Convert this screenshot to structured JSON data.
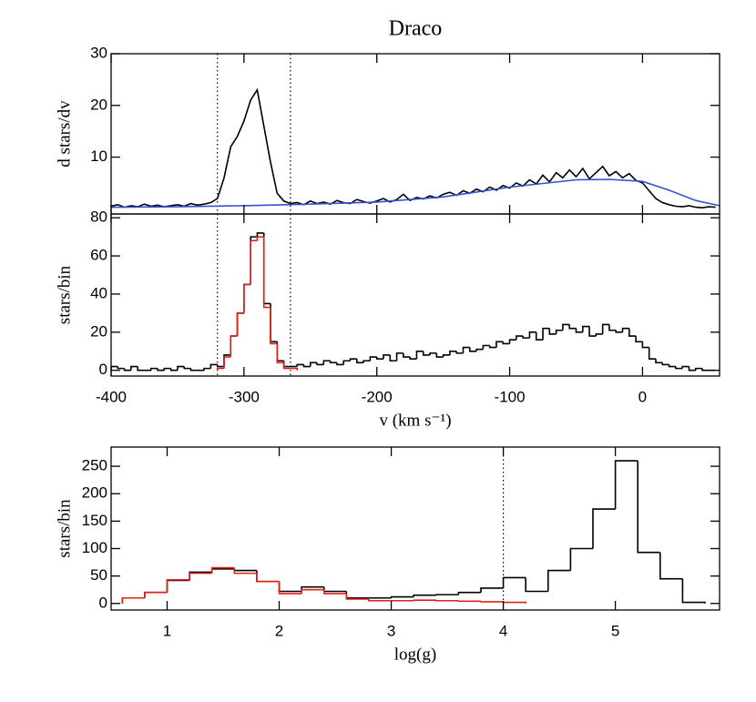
{
  "chart_data": [
    {
      "type": "line",
      "title": "Draco",
      "ylabel": "d stars/dv",
      "xlim": [
        -400,
        58
      ],
      "ylim": [
        -1,
        30
      ],
      "yticks": [
        10,
        20,
        30
      ],
      "vlines": [
        -320,
        -265
      ],
      "series": [
        {
          "color": "#000000",
          "x": [
            -400,
            -395,
            -390,
            -385,
            -380,
            -375,
            -370,
            -365,
            -360,
            -355,
            -350,
            -345,
            -340,
            -335,
            -330,
            -325,
            -320,
            -315,
            -310,
            -305,
            -300,
            -295,
            -290,
            -285,
            -280,
            -275,
            -270,
            -265,
            -260,
            -255,
            -250,
            -245,
            -240,
            -235,
            -230,
            -225,
            -220,
            -215,
            -210,
            -205,
            -200,
            -195,
            -190,
            -185,
            -180,
            -175,
            -170,
            -165,
            -160,
            -155,
            -150,
            -145,
            -140,
            -135,
            -130,
            -125,
            -120,
            -115,
            -110,
            -105,
            -100,
            -95,
            -90,
            -85,
            -80,
            -75,
            -70,
            -65,
            -60,
            -55,
            -50,
            -45,
            -40,
            -35,
            -30,
            -25,
            -20,
            -15,
            -10,
            -5,
            0,
            5,
            10,
            15,
            20,
            25,
            30,
            35,
            40,
            45,
            50,
            55
          ],
          "values": [
            0.5,
            0.8,
            0.3,
            0.6,
            0.4,
            0.9,
            0.5,
            0.7,
            0.4,
            0.6,
            0.8,
            0.5,
            1.0,
            0.7,
            0.9,
            1.2,
            2,
            6,
            12,
            14,
            17,
            21,
            23,
            16,
            9,
            3,
            1.5,
            1.0,
            1.2,
            0.8,
            1.5,
            1.0,
            1.3,
            0.9,
            1.6,
            1.2,
            1.0,
            1.8,
            1.4,
            1.1,
            1.5,
            2.0,
            1.3,
            1.8,
            2.8,
            1.6,
            2.2,
            1.9,
            2.5,
            2.1,
            2.8,
            3.2,
            2.6,
            3.5,
            3.0,
            3.8,
            3.3,
            4.2,
            3.6,
            4.5,
            4.0,
            5.0,
            4.4,
            5.6,
            4.8,
            6.5,
            5.2,
            7.0,
            6.0,
            7.5,
            6.2,
            7.8,
            5.8,
            7.0,
            8.2,
            6.4,
            7.2,
            6.0,
            6.8,
            5.5,
            5.0,
            3.5,
            2.0,
            1.2,
            0.8,
            0.5,
            0.4,
            0.6,
            0.3,
            0.2,
            0.4,
            0.3
          ]
        },
        {
          "color": "#3a4fd0",
          "x": [
            -400,
            -350,
            -300,
            -250,
            -200,
            -150,
            -100,
            -50,
            -25,
            0,
            20,
            40,
            58
          ],
          "values": [
            0.3,
            0.4,
            0.6,
            0.9,
            1.3,
            2.3,
            4.2,
            5.6,
            5.7,
            5.3,
            3.6,
            1.6,
            0.6
          ]
        }
      ]
    },
    {
      "type": "histogram",
      "ylabel": "stars/bin",
      "xlabel": "v (km s⁻¹)",
      "xlim": [
        -400,
        58
      ],
      "xticks": [
        -400,
        -300,
        -200,
        -100,
        0
      ],
      "ylim": [
        -3,
        82
      ],
      "yticks": [
        0,
        20,
        40,
        60,
        80
      ],
      "vlines": [
        -320,
        -265
      ],
      "series": [
        {
          "color": "#000000",
          "bins": [
            -400,
            -395,
            -390,
            -385,
            -380,
            -375,
            -370,
            -365,
            -360,
            -355,
            -350,
            -345,
            -340,
            -335,
            -330,
            -325,
            -320,
            -315,
            -310,
            -305,
            -300,
            -295,
            -290,
            -285,
            -280,
            -275,
            -270,
            -265,
            -260,
            -255,
            -250,
            -245,
            -240,
            -235,
            -230,
            -225,
            -220,
            -215,
            -210,
            -205,
            -200,
            -195,
            -190,
            -185,
            -180,
            -175,
            -170,
            -165,
            -160,
            -155,
            -150,
            -145,
            -140,
            -135,
            -130,
            -125,
            -120,
            -115,
            -110,
            -105,
            -100,
            -95,
            -90,
            -85,
            -80,
            -75,
            -70,
            -65,
            -60,
            -55,
            -50,
            -45,
            -40,
            -35,
            -30,
            -25,
            -20,
            -15,
            -10,
            -5,
            0,
            5,
            10,
            15,
            20,
            25,
            30,
            35,
            40,
            45,
            50,
            55
          ],
          "values": [
            2,
            1,
            0,
            2,
            0,
            0,
            1,
            0,
            1,
            0,
            2,
            1,
            0,
            0,
            1,
            3,
            2,
            8,
            18,
            30,
            45,
            70,
            72,
            35,
            15,
            5,
            2,
            2,
            3,
            2,
            4,
            3,
            5,
            4,
            3,
            5,
            6,
            4,
            5,
            7,
            6,
            8,
            5,
            9,
            7,
            6,
            10,
            8,
            9,
            7,
            8,
            10,
            9,
            12,
            10,
            11,
            13,
            12,
            15,
            14,
            16,
            18,
            17,
            20,
            16,
            22,
            19,
            21,
            24,
            22,
            20,
            23,
            18,
            19,
            24,
            21,
            20,
            22,
            18,
            15,
            12,
            6,
            4,
            3,
            2,
            1,
            2,
            0,
            1,
            0,
            0
          ]
        },
        {
          "color": "#e0201b",
          "bins": [
            -320,
            -315,
            -310,
            -305,
            -300,
            -295,
            -290,
            -285,
            -280,
            -275,
            -270,
            -265,
            -260
          ],
          "values": [
            1,
            7,
            18,
            30,
            45,
            68,
            70,
            33,
            14,
            4,
            1,
            1
          ]
        }
      ]
    },
    {
      "type": "histogram",
      "ylabel": "stars/bin",
      "xlabel": "log(g)",
      "xlim": [
        0.5,
        5.93
      ],
      "xticks": [
        1,
        2,
        3,
        4,
        5
      ],
      "ylim": [
        -12,
        285
      ],
      "yticks": [
        0,
        50,
        100,
        150,
        200,
        250
      ],
      "vlines": [
        4
      ],
      "series": [
        {
          "color": "#000000",
          "bins": [
            0.6,
            0.8,
            1.0,
            1.2,
            1.4,
            1.6,
            1.8,
            2.0,
            2.2,
            2.4,
            2.6,
            2.8,
            3.0,
            3.2,
            3.4,
            3.6,
            3.8,
            4.0,
            4.2,
            4.4,
            4.6,
            4.8,
            5.0,
            5.2,
            5.4,
            5.6,
            5.8
          ],
          "values": [
            10,
            20,
            42,
            57,
            63,
            60,
            40,
            22,
            30,
            22,
            10,
            10,
            12,
            15,
            16,
            20,
            28,
            47,
            22,
            60,
            100,
            172,
            260,
            93,
            45,
            2
          ]
        },
        {
          "color": "#e0201b",
          "bins": [
            0.6,
            0.8,
            1.0,
            1.2,
            1.4,
            1.6,
            1.8,
            2.0,
            2.2,
            2.4,
            2.6,
            2.8,
            3.0,
            3.2,
            3.4,
            3.6,
            3.8,
            4.0,
            4.2
          ],
          "values": [
            10,
            20,
            43,
            55,
            65,
            55,
            40,
            18,
            25,
            18,
            8,
            5,
            5,
            6,
            5,
            4,
            3,
            2
          ]
        }
      ]
    }
  ]
}
